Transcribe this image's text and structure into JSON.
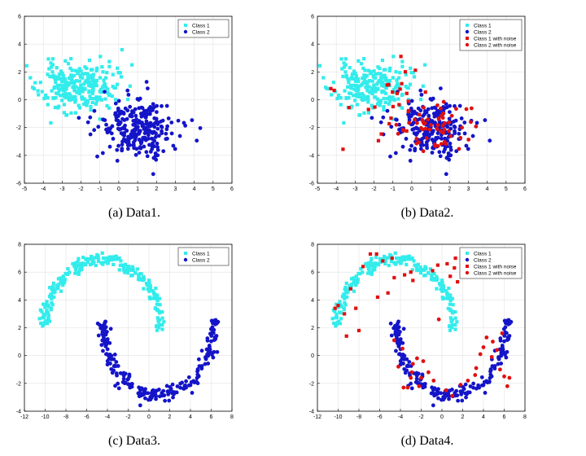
{
  "chart_data": [
    {
      "type": "scatter",
      "caption": "(a) Data1.",
      "xlim": [
        -5,
        6
      ],
      "ylim": [
        -6,
        6
      ],
      "xticks": [
        "-5",
        "-4",
        "-3",
        "-2",
        "-1",
        "0",
        "1",
        "2",
        "3",
        "4",
        "5",
        "6"
      ],
      "yticks": [
        "-6",
        "-4",
        "-2",
        "0",
        "2",
        "4",
        "6"
      ],
      "grid": true,
      "legend_position": "top-right",
      "series": [
        {
          "name": "Class 1",
          "marker": "square",
          "color": "#33ecec",
          "generator": {
            "kind": "blob",
            "cx": -2.2,
            "cy": 0.9,
            "sx": 1.0,
            "sy": 0.9,
            "n": 260,
            "seed": 11
          }
        },
        {
          "name": "Class 2",
          "marker": "circle",
          "color": "#1414c8",
          "generator": {
            "kind": "blob",
            "cx": 1.0,
            "cy": -2.0,
            "sx": 1.0,
            "sy": 1.0,
            "n": 260,
            "seed": 22
          }
        }
      ]
    },
    {
      "type": "scatter",
      "caption": "(b) Data2.",
      "xlim": [
        -5,
        6
      ],
      "ylim": [
        -6,
        6
      ],
      "xticks": [
        "-5",
        "-4",
        "-3",
        "-2",
        "-1",
        "0",
        "1",
        "2",
        "3",
        "4",
        "5",
        "6"
      ],
      "yticks": [
        "-6",
        "-4",
        "-2",
        "0",
        "2",
        "4",
        "6"
      ],
      "grid": true,
      "legend_position": "top-right",
      "series": [
        {
          "name": "Class 1",
          "marker": "square",
          "color": "#33ecec",
          "generator": {
            "kind": "blob",
            "cx": -2.2,
            "cy": 0.9,
            "sx": 1.0,
            "sy": 0.9,
            "n": 230,
            "seed": 11
          }
        },
        {
          "name": "Class 2",
          "marker": "circle",
          "color": "#1414c8",
          "generator": {
            "kind": "blob",
            "cx": 1.0,
            "cy": -2.0,
            "sx": 1.0,
            "sy": 1.0,
            "n": 230,
            "seed": 22
          }
        },
        {
          "name": "Class 1 with noise",
          "marker": "square",
          "color": "#e01010",
          "generator": {
            "kind": "blob",
            "cx": -1.2,
            "cy": -0.3,
            "sx": 1.4,
            "sy": 1.4,
            "n": 30,
            "seed": 33
          }
        },
        {
          "name": "Class 2 with noise",
          "marker": "circle",
          "color": "#e01010",
          "generator": {
            "kind": "blob",
            "cx": 1.3,
            "cy": -2.0,
            "sx": 1.1,
            "sy": 1.0,
            "n": 55,
            "seed": 44
          }
        }
      ]
    },
    {
      "type": "scatter",
      "caption": "(c) Data3.",
      "xlim": [
        -12,
        8
      ],
      "ylim": [
        -4,
        8
      ],
      "xticks": [
        "-12",
        "-10",
        "-8",
        "-6",
        "-4",
        "-2",
        "0",
        "2",
        "4",
        "6",
        "8"
      ],
      "yticks": [
        "-4",
        "-2",
        "0",
        "2",
        "4",
        "6",
        "8"
      ],
      "grid": true,
      "legend_position": "top-right",
      "series": [
        {
          "name": "Class 1",
          "marker": "square",
          "color": "#33ecec",
          "generator": {
            "kind": "arc",
            "cx": -4.5,
            "cy": 1.8,
            "r": 5.6,
            "ry": 5.1,
            "a0": 3.14159,
            "a1": 0.0,
            "noise": 0.25,
            "n": 230,
            "seed": 55
          }
        },
        {
          "name": "Class 2",
          "marker": "circle",
          "color": "#1414c8",
          "generator": {
            "kind": "arc",
            "cx": 0.9,
            "cy": 2.6,
            "r": 5.4,
            "ry": 5.5,
            "a0": 3.14159,
            "a1": 6.28318,
            "noise": 0.25,
            "n": 230,
            "seed": 66
          }
        }
      ]
    },
    {
      "type": "scatter",
      "caption": "(d) Data4.",
      "xlim": [
        -12,
        8
      ],
      "ylim": [
        -4,
        8
      ],
      "xticks": [
        "-12",
        "-10",
        "-8",
        "-6",
        "-4",
        "-2",
        "0",
        "2",
        "4",
        "6",
        "8"
      ],
      "yticks": [
        "-4",
        "-2",
        "0",
        "2",
        "4",
        "6",
        "8"
      ],
      "grid": true,
      "legend_position": "top-right",
      "series": [
        {
          "name": "Class 1",
          "marker": "square",
          "color": "#33ecec",
          "generator": {
            "kind": "arc",
            "cx": -4.5,
            "cy": 1.8,
            "r": 5.6,
            "ry": 5.1,
            "a0": 3.14159,
            "a1": 0.0,
            "noise": 0.25,
            "n": 210,
            "seed": 55
          }
        },
        {
          "name": "Class 2",
          "marker": "circle",
          "color": "#1414c8",
          "generator": {
            "kind": "arc",
            "cx": 0.9,
            "cy": 2.6,
            "r": 5.4,
            "ry": 5.5,
            "a0": 3.14159,
            "a1": 6.28318,
            "noise": 0.25,
            "n": 210,
            "seed": 66
          }
        },
        {
          "name": "Class 1 with noise",
          "marker": "square",
          "color": "#e01010",
          "points": [
            [
              -10.3,
              3.4
            ],
            [
              -10.0,
              3.6
            ],
            [
              -9.4,
              3.0
            ],
            [
              -9.2,
              1.4
            ],
            [
              -8.8,
              4.8
            ],
            [
              -8.3,
              3.4
            ],
            [
              -8.0,
              1.8
            ],
            [
              -7.6,
              6.4
            ],
            [
              -6.9,
              7.3
            ],
            [
              -6.3,
              7.3
            ],
            [
              -6.2,
              4.2
            ],
            [
              -5.7,
              6.8
            ],
            [
              -5.2,
              4.5
            ],
            [
              -4.8,
              7.0
            ],
            [
              -4.6,
              5.6
            ],
            [
              -3.6,
              5.8
            ],
            [
              -3.0,
              6.0
            ],
            [
              -2.8,
              5.4
            ],
            [
              -0.9,
              6.1
            ],
            [
              -0.4,
              6.5
            ],
            [
              0.5,
              6.6
            ],
            [
              0.8,
              5.7
            ],
            [
              1.2,
              6.3
            ],
            [
              1.3,
              7.0
            ],
            [
              1.5,
              5.3
            ]
          ]
        },
        {
          "name": "Class 2 with noise",
          "marker": "circle",
          "color": "#e01010",
          "points": [
            [
              -4.6,
              1.1
            ],
            [
              -4.2,
              -0.8
            ],
            [
              -3.8,
              0.5
            ],
            [
              -3.7,
              -2.3
            ],
            [
              -3.3,
              -2.3
            ],
            [
              -3.0,
              -1.6
            ],
            [
              -2.9,
              -1.2
            ],
            [
              -2.8,
              -0.6
            ],
            [
              -2.4,
              -0.2
            ],
            [
              -2.2,
              -2.2
            ],
            [
              -2.0,
              -1.6
            ],
            [
              -1.8,
              -0.4
            ],
            [
              -1.3,
              -1.2
            ],
            [
              -0.8,
              -1.8
            ],
            [
              -0.3,
              2.6
            ],
            [
              0.4,
              -2.5
            ],
            [
              1.0,
              -2.9
            ],
            [
              1.8,
              -2.1
            ],
            [
              2.5,
              -1.8
            ],
            [
              3.2,
              -1.4
            ],
            [
              3.3,
              -0.9
            ],
            [
              3.7,
              0.1
            ],
            [
              4.0,
              0.6
            ],
            [
              4.3,
              1.3
            ],
            [
              4.8,
              -0.1
            ],
            [
              5.3,
              0.4
            ],
            [
              6.0,
              -1.5
            ],
            [
              6.3,
              -2.2
            ],
            [
              6.5,
              -1.6
            ],
            [
              5.6,
              -1.0
            ],
            [
              4.9,
              1.0
            ],
            [
              5.8,
              1.6
            ]
          ]
        }
      ]
    }
  ]
}
